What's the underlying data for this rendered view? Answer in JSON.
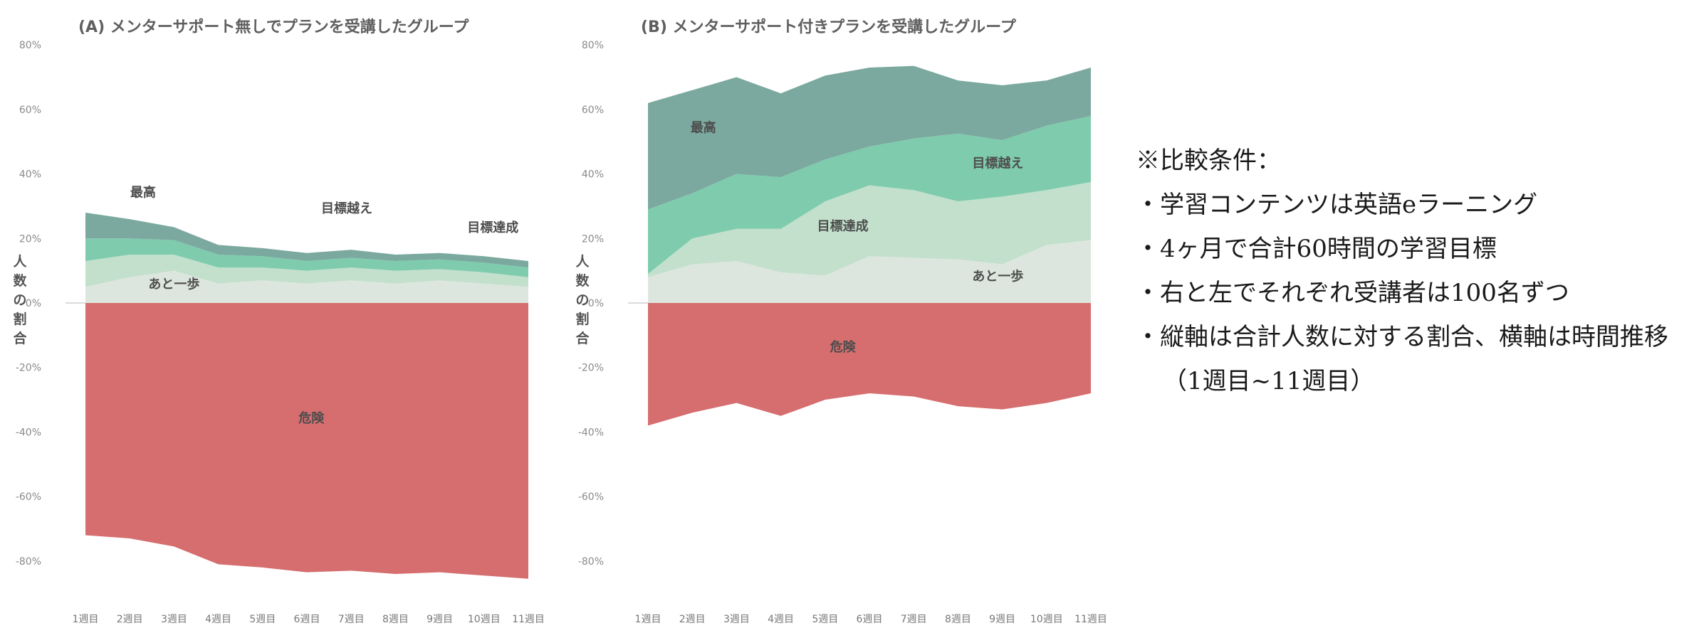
{
  "chart_data": [
    {
      "id": "a",
      "type": "area",
      "title": "(A) メンターサポート無しでプランを受講したグループ",
      "ylabel": "人数の割合",
      "categories": [
        "1週目",
        "2週目",
        "3週目",
        "4週目",
        "5週目",
        "6週目",
        "7週目",
        "8週目",
        "9週目",
        "10週目",
        "11週目"
      ],
      "ylim": [
        -80,
        80
      ],
      "yticks": [
        "80%",
        "60%",
        "40%",
        "20%",
        "0%",
        "-20%",
        "-40%",
        "-60%",
        "-80%"
      ],
      "yticks_values": [
        80,
        60,
        40,
        20,
        0,
        -20,
        -40,
        -60,
        -80
      ],
      "series": [
        {
          "name": "あと一歩",
          "color": "#dde6de",
          "values": [
            5,
            8,
            10,
            6,
            7,
            6,
            7,
            6,
            7,
            6,
            5
          ]
        },
        {
          "name": "目標達成",
          "color": "#c2e0cc",
          "values": [
            8,
            7,
            5,
            5,
            4,
            4,
            4,
            4,
            3.5,
            3.5,
            3
          ]
        },
        {
          "name": "目標越え",
          "color": "#7fcbae",
          "values": [
            7,
            5,
            4.5,
            4,
            3.5,
            3,
            3,
            3,
            3,
            3,
            3
          ]
        },
        {
          "name": "最高",
          "color": "#7ba99f",
          "values": [
            8,
            6,
            4,
            3,
            2.5,
            2.5,
            2.5,
            2,
            2,
            2,
            2
          ]
        },
        {
          "name": "危険",
          "color": "#d66d6e",
          "values": [
            -72,
            -73,
            -75.5,
            -81,
            -82,
            -83.5,
            -83,
            -84,
            -83.5,
            -84.5,
            -85.5
          ]
        }
      ],
      "labels": [
        {
          "text": "最高",
          "x": 2.3,
          "y": 33
        },
        {
          "text": "目標越え",
          "x": 6.9,
          "y": 28
        },
        {
          "text": "目標達成",
          "x": 10.2,
          "y": 22
        },
        {
          "text": "あと一歩",
          "x": 3,
          "y": 4.5
        },
        {
          "text": "危険",
          "x": 6.1,
          "y": -37
        }
      ]
    },
    {
      "id": "b",
      "type": "area",
      "title": "(B) メンターサポート付きプランを受講したグループ",
      "ylabel": "人数の割合",
      "categories": [
        "1週目",
        "2週目",
        "3週目",
        "4週目",
        "5週目",
        "6週目",
        "7週目",
        "8週目",
        "9週目",
        "10週目",
        "11週目"
      ],
      "ylim": [
        -80,
        80
      ],
      "yticks": [
        "80%",
        "60%",
        "40%",
        "20%",
        "0%",
        "-20%",
        "-40%",
        "-60%",
        "-80%"
      ],
      "yticks_values": [
        80,
        60,
        40,
        20,
        0,
        -20,
        -40,
        -60,
        -80
      ],
      "series": [
        {
          "name": "あと一歩",
          "color": "#dde6de",
          "values": [
            8,
            12,
            13,
            9.5,
            8.5,
            14.5,
            14,
            13.5,
            12,
            18,
            19.5
          ]
        },
        {
          "name": "目標達成",
          "color": "#c2e0cc",
          "values": [
            1,
            8,
            10,
            13.5,
            23,
            22,
            21,
            18,
            21,
            17,
            18
          ]
        },
        {
          "name": "目標越え",
          "color": "#7fcbae",
          "values": [
            20,
            14,
            17,
            16,
            13,
            12,
            16,
            21,
            17.5,
            20,
            20.5
          ]
        },
        {
          "name": "最高",
          "color": "#7ba99f",
          "values": [
            33,
            32,
            30,
            26,
            26,
            24.5,
            22.5,
            16.5,
            17,
            14,
            15
          ]
        },
        {
          "name": "危険",
          "color": "#d66d6e",
          "values": [
            -38,
            -34,
            -31,
            -35,
            -30,
            -28,
            -29,
            -32,
            -33,
            -31,
            -28
          ]
        }
      ],
      "labels": [
        {
          "text": "最高",
          "x": 2.25,
          "y": 53
        },
        {
          "text": "目標越え",
          "x": 8.9,
          "y": 42
        },
        {
          "text": "目標達成",
          "x": 5.4,
          "y": 22.5
        },
        {
          "text": "あと一歩",
          "x": 8.9,
          "y": 7
        },
        {
          "text": "危険",
          "x": 5.4,
          "y": -15
        }
      ]
    }
  ],
  "notes": {
    "heading": "※比較条件：",
    "items": [
      "・学習コンテンツは英語eラーニング",
      "・4ヶ月で合計60時間の学習目標",
      "・右と左でそれぞれ受講者は100名ずつ",
      "・縦軸は合計人数に対する割合、横軸は時間推移（1週目~11週目）"
    ]
  }
}
